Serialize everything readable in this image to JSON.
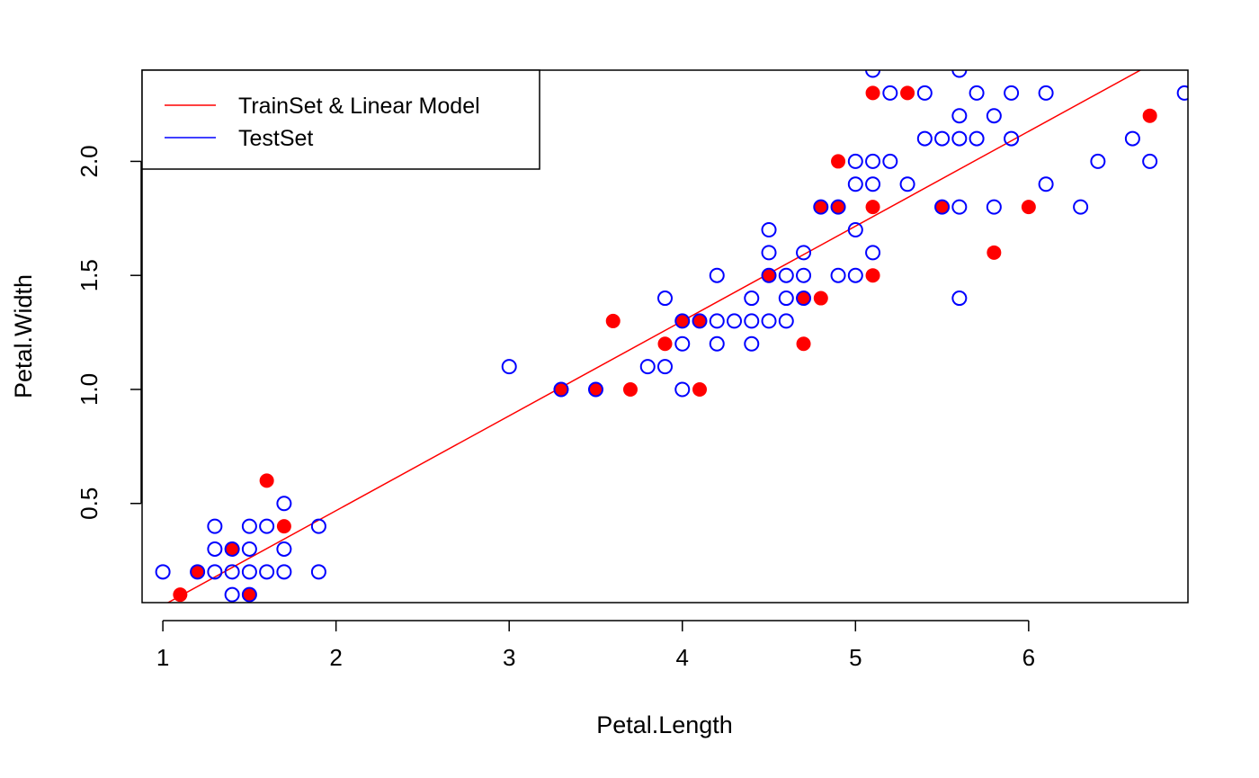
{
  "chart_data": {
    "type": "scatter",
    "title": "",
    "xlabel": "Petal.Length",
    "ylabel": "Petal.Width",
    "xlim": [
      0.88,
      6.92
    ],
    "ylim": [
      0.0652,
      2.4
    ],
    "x_ticks": [
      1,
      2,
      3,
      4,
      5,
      6
    ],
    "y_ticks": [
      0.5,
      1.0,
      1.5,
      2.0
    ],
    "x_tick_labels": [
      "1",
      "2",
      "3",
      "4",
      "5",
      "6"
    ],
    "y_tick_labels": [
      "0.5",
      "1.0",
      "1.5",
      "2.0"
    ],
    "grid": false,
    "legend_placement": "top-left",
    "colors": {
      "train": "#ff0000",
      "test": "#0000ff",
      "model": "#ff0000"
    },
    "legend": [
      {
        "label": "TrainSet & Linear Model",
        "color": "#ff0000"
      },
      {
        "label": "TestSet",
        "color": "#0000ff"
      }
    ],
    "model_line": {
      "intercept": -0.3631,
      "slope": 0.4158
    },
    "series": [
      {
        "marker": "filled-circle",
        "color": "#ff0000",
        "points": [
          [
            1.1,
            0.1
          ],
          [
            1.2,
            0.2
          ],
          [
            1.4,
            0.3
          ],
          [
            1.5,
            0.1
          ],
          [
            1.6,
            0.6
          ],
          [
            1.7,
            0.4
          ],
          [
            3.3,
            1.0
          ],
          [
            3.5,
            1.0
          ],
          [
            3.6,
            1.3
          ],
          [
            3.7,
            1.0
          ],
          [
            3.9,
            1.2
          ],
          [
            4.0,
            1.3
          ],
          [
            4.1,
            1.3
          ],
          [
            4.1,
            1.0
          ],
          [
            4.5,
            1.5
          ],
          [
            4.7,
            1.4
          ],
          [
            4.7,
            1.2
          ],
          [
            4.8,
            1.8
          ],
          [
            4.8,
            1.4
          ],
          [
            4.9,
            1.8
          ],
          [
            4.9,
            2.0
          ],
          [
            5.1,
            2.3
          ],
          [
            5.1,
            1.8
          ],
          [
            5.1,
            1.5
          ],
          [
            5.3,
            2.3
          ],
          [
            5.5,
            1.8
          ],
          [
            5.8,
            1.6
          ],
          [
            6.0,
            1.8
          ],
          [
            6.7,
            2.2
          ]
        ]
      },
      {
        "marker": "open-circle",
        "color": "#0000ff",
        "points": [
          [
            1.0,
            0.2
          ],
          [
            1.2,
            0.2
          ],
          [
            1.3,
            0.2
          ],
          [
            1.3,
            0.3
          ],
          [
            1.3,
            0.4
          ],
          [
            1.4,
            0.1
          ],
          [
            1.4,
            0.2
          ],
          [
            1.4,
            0.3
          ],
          [
            1.5,
            0.1
          ],
          [
            1.5,
            0.2
          ],
          [
            1.5,
            0.3
          ],
          [
            1.5,
            0.4
          ],
          [
            1.6,
            0.2
          ],
          [
            1.6,
            0.4
          ],
          [
            1.7,
            0.2
          ],
          [
            1.7,
            0.3
          ],
          [
            1.7,
            0.5
          ],
          [
            1.9,
            0.2
          ],
          [
            1.9,
            0.4
          ],
          [
            3.0,
            1.1
          ],
          [
            3.3,
            1.0
          ],
          [
            3.5,
            1.0
          ],
          [
            3.8,
            1.1
          ],
          [
            3.9,
            1.1
          ],
          [
            3.9,
            1.4
          ],
          [
            4.0,
            1.0
          ],
          [
            4.0,
            1.2
          ],
          [
            4.0,
            1.3
          ],
          [
            4.1,
            1.3
          ],
          [
            4.2,
            1.2
          ],
          [
            4.2,
            1.3
          ],
          [
            4.2,
            1.5
          ],
          [
            4.3,
            1.3
          ],
          [
            4.4,
            1.2
          ],
          [
            4.4,
            1.3
          ],
          [
            4.4,
            1.4
          ],
          [
            4.5,
            1.3
          ],
          [
            4.5,
            1.5
          ],
          [
            4.5,
            1.6
          ],
          [
            4.5,
            1.7
          ],
          [
            4.6,
            1.3
          ],
          [
            4.6,
            1.4
          ],
          [
            4.6,
            1.5
          ],
          [
            4.7,
            1.4
          ],
          [
            4.7,
            1.5
          ],
          [
            4.7,
            1.6
          ],
          [
            4.8,
            1.8
          ],
          [
            4.9,
            1.5
          ],
          [
            4.9,
            1.8
          ],
          [
            5.0,
            1.5
          ],
          [
            5.0,
            1.7
          ],
          [
            5.0,
            1.9
          ],
          [
            5.0,
            2.0
          ],
          [
            5.1,
            1.6
          ],
          [
            5.1,
            1.9
          ],
          [
            5.1,
            2.0
          ],
          [
            5.1,
            2.4
          ],
          [
            5.2,
            2.0
          ],
          [
            5.2,
            2.3
          ],
          [
            5.3,
            1.9
          ],
          [
            5.4,
            2.1
          ],
          [
            5.4,
            2.3
          ],
          [
            5.5,
            1.8
          ],
          [
            5.5,
            2.1
          ],
          [
            5.6,
            1.4
          ],
          [
            5.6,
            1.8
          ],
          [
            5.6,
            2.1
          ],
          [
            5.6,
            2.2
          ],
          [
            5.6,
            2.4
          ],
          [
            5.7,
            2.1
          ],
          [
            5.7,
            2.3
          ],
          [
            5.8,
            1.8
          ],
          [
            5.8,
            2.2
          ],
          [
            5.9,
            2.1
          ],
          [
            5.9,
            2.3
          ],
          [
            6.1,
            1.9
          ],
          [
            6.1,
            2.3
          ],
          [
            6.3,
            1.8
          ],
          [
            6.4,
            2.0
          ],
          [
            6.6,
            2.1
          ],
          [
            6.7,
            2.0
          ],
          [
            6.9,
            2.3
          ]
        ]
      }
    ]
  }
}
